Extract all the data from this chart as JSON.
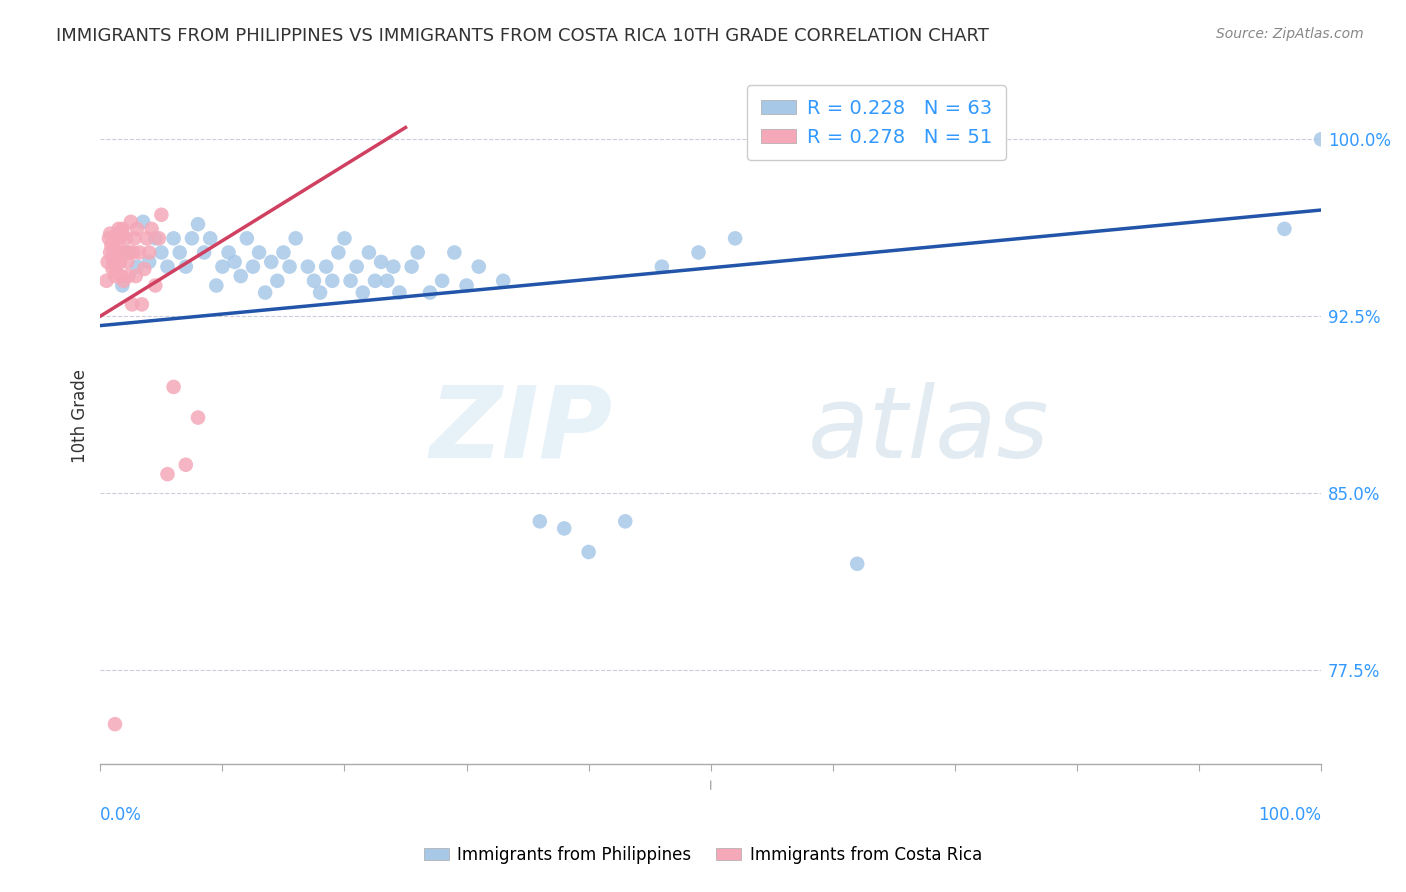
{
  "title": "IMMIGRANTS FROM PHILIPPINES VS IMMIGRANTS FROM COSTA RICA 10TH GRADE CORRELATION CHART",
  "source": "Source: ZipAtlas.com",
  "ylabel": "10th Grade",
  "ytick_labels": [
    "77.5%",
    "85.0%",
    "92.5%",
    "100.0%"
  ],
  "ytick_values": [
    0.775,
    0.85,
    0.925,
    1.0
  ],
  "xlim": [
    0.0,
    1.0
  ],
  "ylim": [
    0.735,
    1.03
  ],
  "legend_r1": "R = 0.228   N = 63",
  "legend_r2": "R = 0.278   N = 51",
  "blue_color": "#a8c8e8",
  "pink_color": "#f4a8b8",
  "blue_line_color": "#2255aa",
  "pink_line_color": "#d04060",
  "watermark_zip": "ZIP",
  "watermark_atlas": "atlas",
  "blue_x": [
    0.018,
    0.022,
    0.03,
    0.035,
    0.04,
    0.045,
    0.05,
    0.055,
    0.06,
    0.065,
    0.07,
    0.075,
    0.08,
    0.085,
    0.09,
    0.095,
    0.1,
    0.105,
    0.11,
    0.115,
    0.12,
    0.125,
    0.13,
    0.135,
    0.14,
    0.145,
    0.15,
    0.155,
    0.16,
    0.17,
    0.175,
    0.18,
    0.185,
    0.19,
    0.195,
    0.2,
    0.205,
    0.21,
    0.215,
    0.22,
    0.225,
    0.23,
    0.235,
    0.24,
    0.245,
    0.255,
    0.26,
    0.27,
    0.28,
    0.29,
    0.3,
    0.31,
    0.33,
    0.36,
    0.38,
    0.4,
    0.43,
    0.46,
    0.49,
    0.52,
    0.62,
    0.97,
    1.0
  ],
  "blue_y": [
    0.938,
    0.952,
    0.946,
    0.965,
    0.948,
    0.958,
    0.952,
    0.946,
    0.958,
    0.952,
    0.946,
    0.958,
    0.964,
    0.952,
    0.958,
    0.938,
    0.946,
    0.952,
    0.948,
    0.942,
    0.958,
    0.946,
    0.952,
    0.935,
    0.948,
    0.94,
    0.952,
    0.946,
    0.958,
    0.946,
    0.94,
    0.935,
    0.946,
    0.94,
    0.952,
    0.958,
    0.94,
    0.946,
    0.935,
    0.952,
    0.94,
    0.948,
    0.94,
    0.946,
    0.935,
    0.946,
    0.952,
    0.935,
    0.94,
    0.952,
    0.938,
    0.946,
    0.94,
    0.838,
    0.835,
    0.825,
    0.838,
    0.946,
    0.952,
    0.958,
    0.82,
    0.962,
    1.0
  ],
  "pink_x": [
    0.005,
    0.006,
    0.007,
    0.008,
    0.008,
    0.009,
    0.01,
    0.01,
    0.011,
    0.011,
    0.012,
    0.012,
    0.013,
    0.013,
    0.014,
    0.014,
    0.015,
    0.015,
    0.016,
    0.016,
    0.017,
    0.017,
    0.018,
    0.018,
    0.019,
    0.019,
    0.02,
    0.021,
    0.022,
    0.023,
    0.024,
    0.025,
    0.026,
    0.027,
    0.028,
    0.029,
    0.03,
    0.032,
    0.034,
    0.036,
    0.038,
    0.04,
    0.042,
    0.045,
    0.048,
    0.05,
    0.055,
    0.06,
    0.07,
    0.08,
    0.012
  ],
  "pink_y": [
    0.94,
    0.948,
    0.958,
    0.952,
    0.96,
    0.955,
    0.945,
    0.95,
    0.948,
    0.956,
    0.942,
    0.952,
    0.944,
    0.952,
    0.952,
    0.96,
    0.962,
    0.96,
    0.948,
    0.958,
    0.942,
    0.952,
    0.962,
    0.96,
    0.94,
    0.952,
    0.952,
    0.958,
    0.948,
    0.942,
    0.952,
    0.965,
    0.93,
    0.952,
    0.958,
    0.942,
    0.962,
    0.952,
    0.93,
    0.945,
    0.958,
    0.952,
    0.962,
    0.938,
    0.958,
    0.968,
    0.858,
    0.895,
    0.862,
    0.882,
    0.752
  ]
}
